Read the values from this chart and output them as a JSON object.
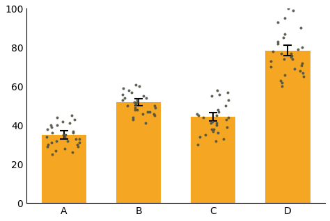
{
  "categories": [
    "A",
    "B",
    "C",
    "D"
  ],
  "bar_means": [
    35.0,
    52.0,
    44.5,
    78.5
  ],
  "bar_errors": [
    2.2,
    1.8,
    2.2,
    2.8
  ],
  "bar_color": "#F5A623",
  "dot_color": "#4a5240",
  "dot_alpha": 0.9,
  "dot_size": 8,
  "ylim": [
    0,
    100
  ],
  "yticks": [
    0,
    20,
    40,
    60,
    80,
    100
  ],
  "background_color": "#ffffff",
  "bar_width": 0.6,
  "figsize": [
    4.74,
    3.18
  ],
  "dpi": 100,
  "dot_data": {
    "A": [
      25,
      26,
      27,
      28,
      29,
      29,
      30,
      30,
      31,
      31,
      32,
      32,
      33,
      33,
      34,
      34,
      35,
      35,
      36,
      36,
      37,
      38,
      39,
      40,
      40,
      41,
      42,
      43,
      44,
      45
    ],
    "B": [
      41,
      43,
      44,
      45,
      46,
      46,
      47,
      47,
      48,
      48,
      49,
      49,
      50,
      50,
      51,
      51,
      52,
      52,
      53,
      53,
      54,
      54,
      55,
      56,
      57,
      58,
      59,
      60,
      61
    ],
    "C": [
      30,
      32,
      33,
      34,
      35,
      36,
      37,
      38,
      38,
      39,
      40,
      41,
      41,
      42,
      43,
      44,
      44,
      45,
      45,
      46,
      47,
      48,
      50,
      53,
      55,
      56,
      57,
      58
    ],
    "D": [
      60,
      62,
      63,
      65,
      66,
      67,
      68,
      69,
      70,
      71,
      72,
      73,
      74,
      74,
      75,
      76,
      77,
      77,
      78,
      79,
      80,
      82,
      83,
      85,
      87,
      90,
      93,
      95,
      99,
      100
    ]
  }
}
